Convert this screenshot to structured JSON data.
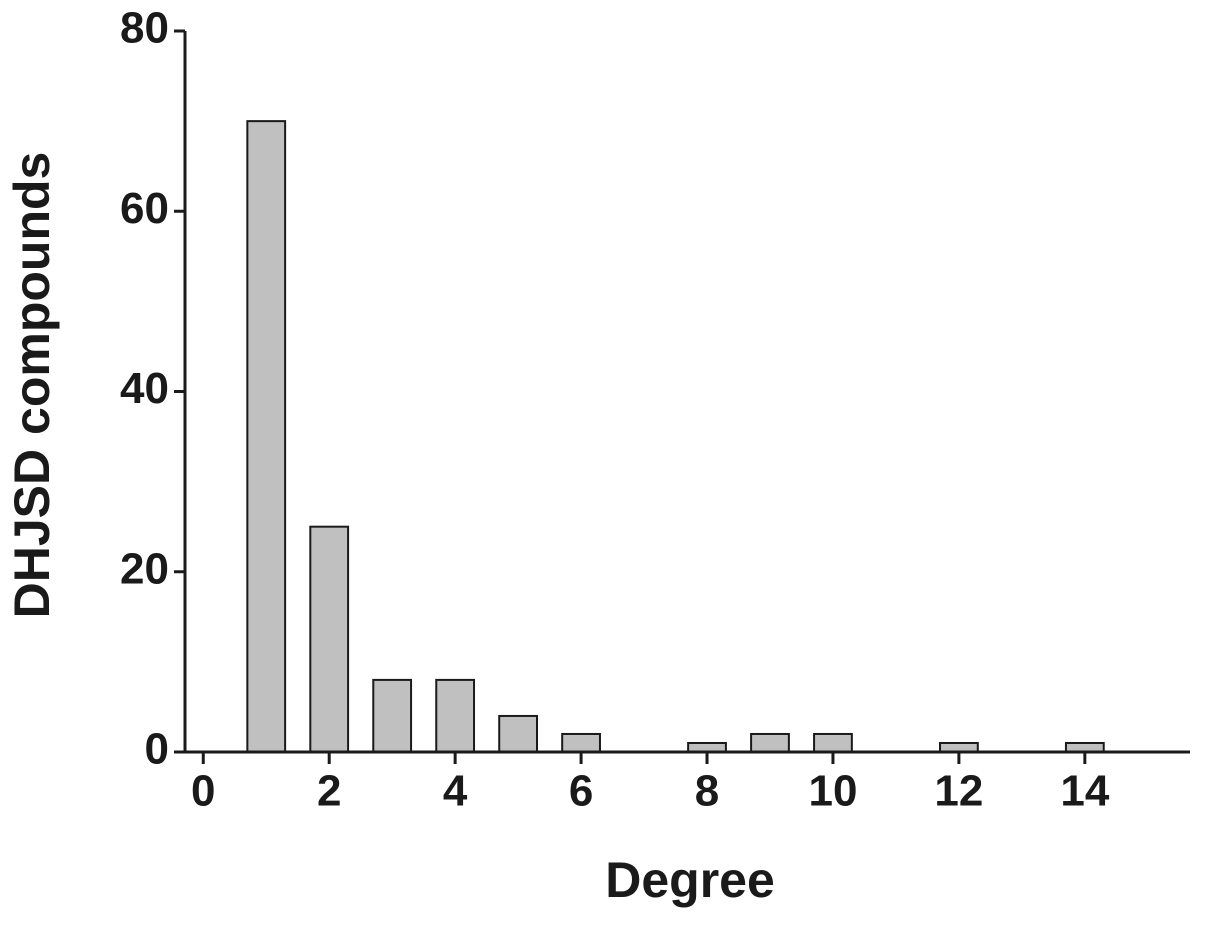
{
  "chart_data": {
    "type": "bar",
    "x_label": "Degree",
    "y_label": "DHJSD compounds",
    "x": [
      1,
      2,
      3,
      4,
      5,
      6,
      8,
      9,
      10,
      12,
      14
    ],
    "values": [
      70,
      25,
      8,
      8,
      4,
      2,
      1,
      2,
      2,
      1,
      1
    ],
    "color": "#c0c0c0",
    "xlim": [
      -0.29,
      15.67
    ],
    "xticks": [
      0,
      2,
      4,
      6,
      8,
      10,
      12,
      14
    ],
    "ylim": [
      0,
      80
    ],
    "yticks": [
      0,
      20,
      40,
      60,
      80
    ],
    "grid": false
  }
}
